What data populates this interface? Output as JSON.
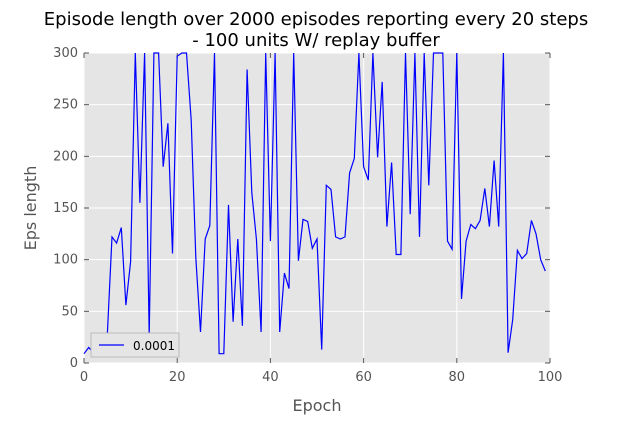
{
  "chart_data": {
    "type": "line",
    "title_line1": "Episode length over 2000 episodes reporting every 20 steps",
    "title_line2": "- 100 units W/ replay buffer",
    "xlabel": "Epoch",
    "ylabel": "Eps length",
    "xlim": [
      0,
      100
    ],
    "ylim": [
      0,
      300
    ],
    "xticks": [
      0,
      20,
      40,
      60,
      80,
      100
    ],
    "yticks": [
      0,
      50,
      100,
      150,
      200,
      250,
      300
    ],
    "grid": true,
    "legend_position": "lower-left",
    "series": [
      {
        "name": "0.0001",
        "color": "#0000ff",
        "x": [
          0,
          1,
          2,
          3,
          4,
          5,
          6,
          7,
          8,
          9,
          10,
          11,
          12,
          13,
          14,
          15,
          16,
          17,
          18,
          19,
          20,
          21,
          22,
          23,
          24,
          25,
          26,
          27,
          28,
          29,
          30,
          31,
          32,
          33,
          34,
          35,
          36,
          37,
          38,
          39,
          40,
          41,
          42,
          43,
          44,
          45,
          46,
          47,
          48,
          49,
          50,
          51,
          52,
          53,
          54,
          55,
          56,
          57,
          58,
          59,
          60,
          61,
          62,
          63,
          64,
          65,
          66,
          67,
          68,
          69,
          70,
          71,
          72,
          73,
          74,
          75,
          76,
          77,
          78,
          79,
          80,
          81,
          82,
          83,
          84,
          85,
          86,
          87,
          88,
          89,
          90,
          91,
          92,
          93,
          94,
          95,
          96,
          97,
          98,
          99
        ],
        "y": [
          9,
          15,
          10,
          12,
          12,
          27,
          122,
          116,
          131,
          56,
          98,
          300,
          155,
          300,
          27,
          300,
          300,
          190,
          232,
          106,
          297,
          300,
          300,
          235,
          102,
          30,
          120,
          133,
          300,
          9,
          9,
          153,
          40,
          120,
          36,
          284,
          165,
          120,
          30,
          300,
          118,
          300,
          30,
          87,
          72,
          300,
          99,
          139,
          137,
          111,
          120,
          13,
          172,
          168,
          122,
          120,
          122,
          184,
          198,
          300,
          190,
          177,
          300,
          199,
          272,
          132,
          194,
          105,
          105,
          300,
          144,
          300,
          122,
          300,
          172,
          300,
          300,
          300,
          118,
          110,
          300,
          62,
          118,
          134,
          130,
          138,
          169,
          132,
          196,
          132,
          300,
          10,
          42,
          109,
          101,
          106,
          138,
          125,
          100,
          89
        ]
      }
    ]
  }
}
